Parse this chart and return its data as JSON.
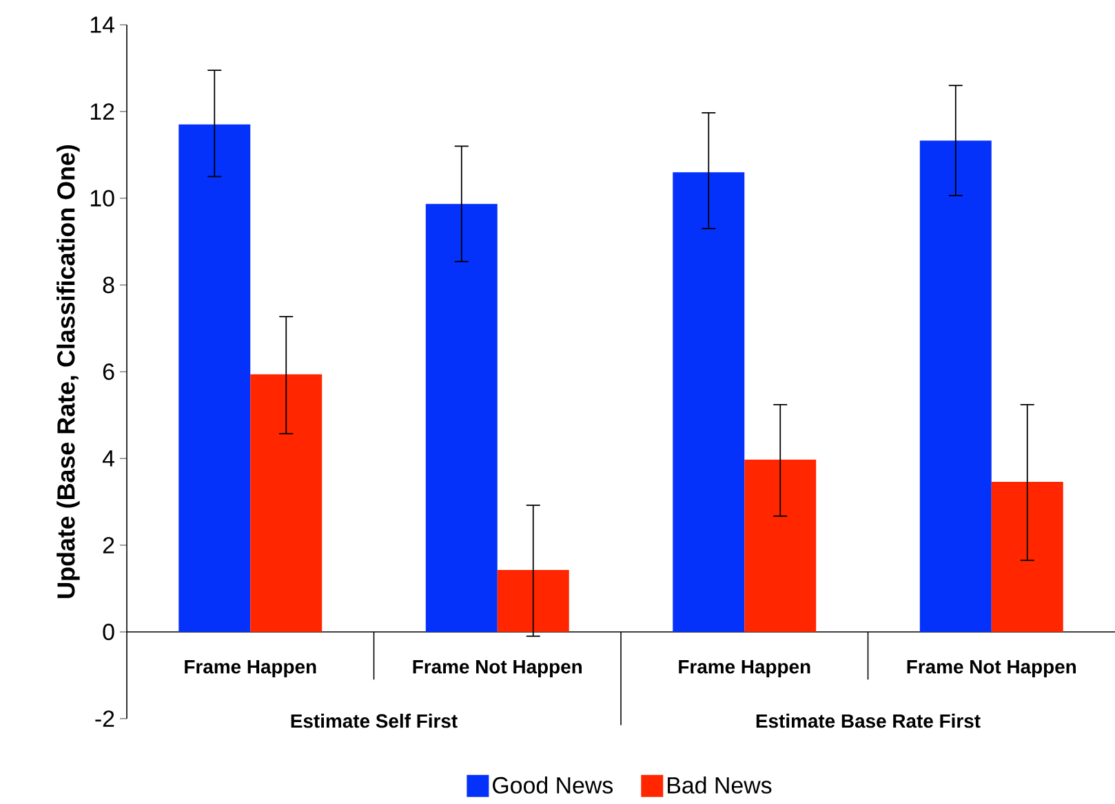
{
  "chart_data": {
    "type": "bar",
    "ylabel": "Update (Base Rate, Classification One)",
    "categories": [
      "Frame Happen",
      "Frame Not Happen",
      "Frame Happen",
      "Frame Not Happen"
    ],
    "annotations": [
      "Estimate Self First",
      "Estimate Base Rate First"
    ],
    "series": [
      {
        "name": "Good News",
        "color": "#0532fa",
        "values": [
          11.7,
          9.87,
          10.6,
          11.33
        ],
        "errors": [
          [
            10.5,
            12.95
          ],
          [
            8.54,
            11.2
          ],
          [
            9.3,
            11.97
          ],
          [
            10.06,
            12.6
          ]
        ]
      },
      {
        "name": "Bad News",
        "color": "#ff2600",
        "values": [
          5.94,
          1.43,
          3.97,
          3.46
        ],
        "errors": [
          [
            4.57,
            7.27
          ],
          [
            -0.1,
            2.92
          ],
          [
            2.67,
            5.24
          ],
          [
            1.65,
            5.24
          ]
        ]
      }
    ],
    "ylim": [
      -2,
      14
    ],
    "yticks": [
      -2,
      0,
      2,
      4,
      6,
      8,
      10,
      12,
      14
    ],
    "legend": "bottom"
  }
}
